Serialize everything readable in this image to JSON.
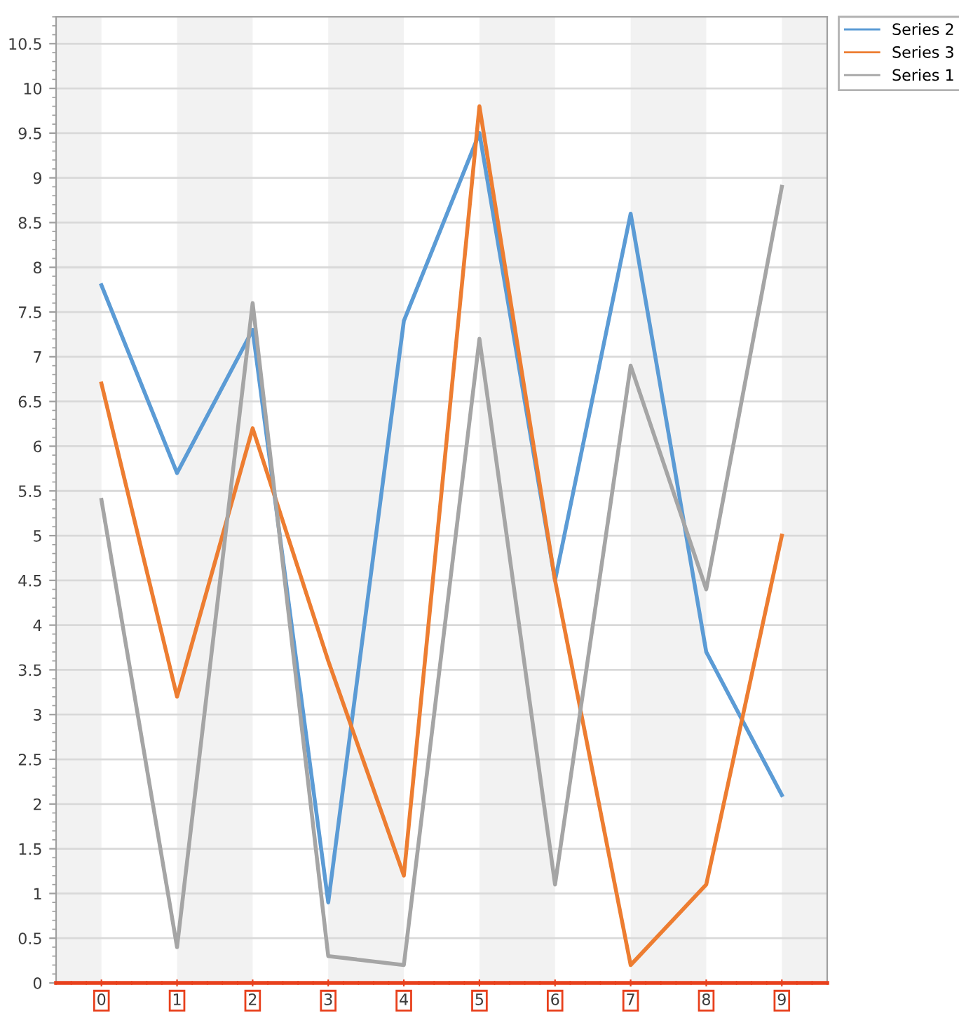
{
  "chart_data": {
    "type": "line",
    "x": [
      0,
      1,
      2,
      3,
      4,
      5,
      6,
      7,
      8,
      9
    ],
    "series": [
      {
        "name": "Series 2",
        "color": "#5b9bd5",
        "values": [
          7.8,
          5.7,
          7.3,
          0.9,
          7.4,
          9.5,
          4.5,
          8.6,
          3.7,
          2.1
        ]
      },
      {
        "name": "Series 3",
        "color": "#ed7d31",
        "values": [
          6.7,
          3.2,
          6.2,
          3.6,
          1.2,
          9.8,
          4.5,
          0.2,
          1.1,
          5.0
        ]
      },
      {
        "name": "Series 1",
        "color": "#a5a5a5",
        "values": [
          5.4,
          0.4,
          7.6,
          0.3,
          0.2,
          7.2,
          1.1,
          6.9,
          4.4,
          8.9
        ]
      }
    ],
    "xlim": [
      -0.6,
      9.6
    ],
    "xticks": [
      0,
      1,
      2,
      3,
      4,
      5,
      6,
      7,
      8,
      9
    ],
    "ylim": [
      0,
      10.8
    ],
    "yticks": [
      0,
      0.5,
      1,
      1.5,
      2,
      2.5,
      3,
      3.5,
      4,
      4.5,
      5,
      5.5,
      6,
      6.5,
      7,
      7.5,
      8,
      8.5,
      9,
      9.5,
      10,
      10.5
    ],
    "bands": [
      {
        "axis": "x",
        "from": -0.6,
        "to": 0,
        "color": "#f2f2f2"
      },
      {
        "axis": "x",
        "from": 1,
        "to": 2,
        "color": "#f2f2f2"
      },
      {
        "axis": "x",
        "from": 3,
        "to": 4,
        "color": "#f2f2f2"
      },
      {
        "axis": "x",
        "from": 5,
        "to": 6,
        "color": "#f2f2f2"
      },
      {
        "axis": "x",
        "from": 7,
        "to": 8,
        "color": "#f2f2f2"
      },
      {
        "axis": "x",
        "from": 9,
        "to": 9.6,
        "color": "#f2f2f2"
      }
    ],
    "grid": "y",
    "legend": "top right",
    "marker": "none",
    "line_style": "solid"
  }
}
